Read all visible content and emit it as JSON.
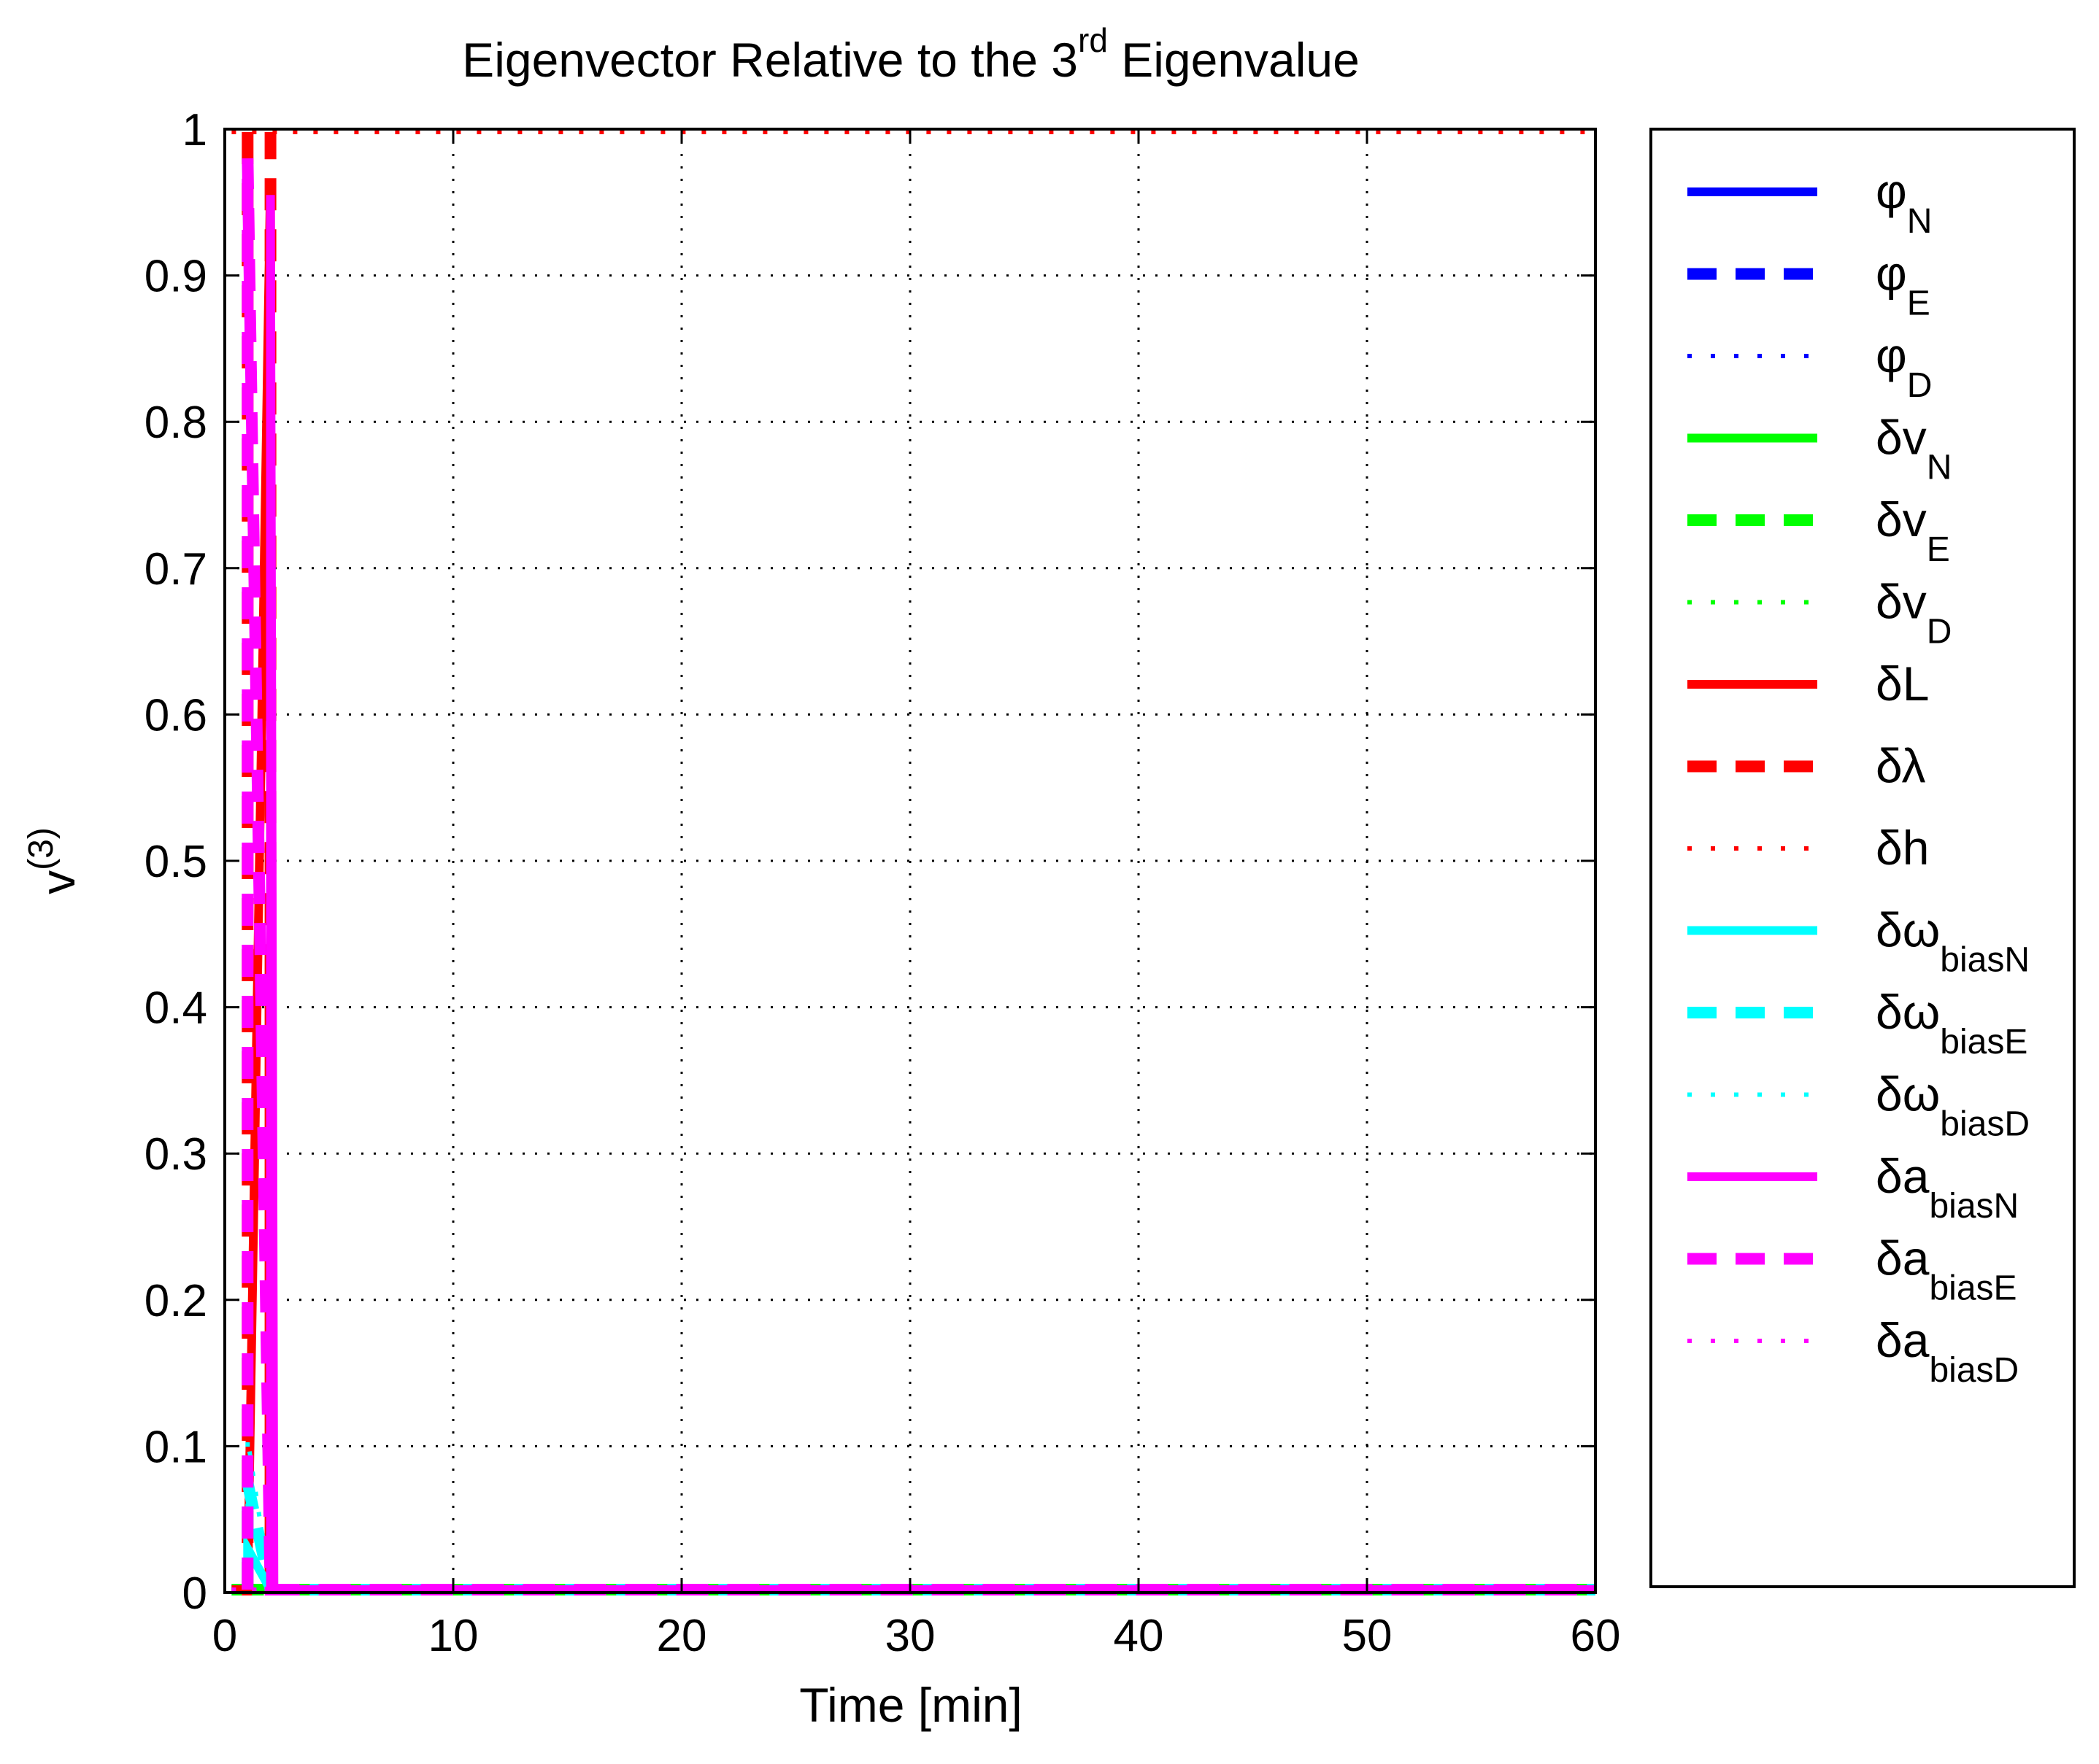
{
  "chart_data": {
    "type": "line",
    "title": {
      "main": "Eigenvector Relative to the 3",
      "superscript": "rd",
      "rest": " Eigenvalue"
    },
    "xlabel": "Time [min]",
    "ylabel": {
      "base": "v",
      "superscript": "(3)"
    },
    "xlim": [
      0,
      60
    ],
    "ylim": [
      0,
      1
    ],
    "xticks": [
      0,
      10,
      20,
      30,
      40,
      50,
      60
    ],
    "xtick_labels": [
      "0",
      "10",
      "20",
      "30",
      "40",
      "50",
      "60"
    ],
    "yticks": [
      0,
      0.1,
      0.2,
      0.3,
      0.4,
      0.5,
      0.6,
      0.7,
      0.8,
      0.9,
      1
    ],
    "ytick_labels": [
      "0",
      "0.1",
      "0.2",
      "0.3",
      "0.4",
      "0.5",
      "0.6",
      "0.7",
      "0.8",
      "0.9",
      "1"
    ],
    "grid": true,
    "legend_position": "outside-right",
    "series": [
      {
        "name": "φN",
        "label": "φ",
        "sub": "N",
        "color": "#0000ff",
        "style": "solid",
        "points": [
          [
            0.3,
            0.002
          ],
          [
            60,
            0.002
          ]
        ]
      },
      {
        "name": "φE",
        "label": "φ",
        "sub": "E",
        "color": "#0000ff",
        "style": "dashed",
        "points": [
          [
            0.3,
            0.002
          ],
          [
            60,
            0.002
          ]
        ]
      },
      {
        "name": "φD",
        "label": "φ",
        "sub": "D",
        "color": "#0000ff",
        "style": "dotted",
        "points": [
          [
            0.3,
            0.002
          ],
          [
            60,
            0.002
          ]
        ]
      },
      {
        "name": "δvN",
        "label": "δv",
        "sub": "N",
        "color": "#00ff00",
        "style": "solid",
        "points": [
          [
            0.3,
            0.002
          ],
          [
            60,
            0.002
          ]
        ]
      },
      {
        "name": "δvE",
        "label": "δv",
        "sub": "E",
        "color": "#00ff00",
        "style": "dashed",
        "points": [
          [
            0.3,
            0.002
          ],
          [
            60,
            0.002
          ]
        ]
      },
      {
        "name": "δvD",
        "label": "δv",
        "sub": "D",
        "color": "#00ff00",
        "style": "dotted",
        "points": [
          [
            0.3,
            0.002
          ],
          [
            60,
            0.002
          ]
        ]
      },
      {
        "name": "δL",
        "label": "δL",
        "sub": "",
        "color": "#ff0000",
        "style": "solid",
        "points": [
          [
            0.3,
            0.002
          ],
          [
            1.0,
            0.002
          ],
          [
            2.0,
            0.965
          ],
          [
            2.05,
            0.002
          ],
          [
            60,
            0.002
          ]
        ]
      },
      {
        "name": "δλ",
        "label": "δλ",
        "sub": "",
        "color": "#ff0000",
        "style": "dashed",
        "points": [
          [
            1.0,
            0.998
          ],
          [
            1.0,
            0.002
          ],
          [
            2.0,
            0.002
          ],
          [
            2.0,
            0.998
          ]
        ]
      },
      {
        "name": "δh",
        "label": "δh",
        "sub": "",
        "color": "#ff0000",
        "style": "dotted",
        "points": [
          [
            0.3,
            0.998
          ],
          [
            60,
            0.998
          ]
        ]
      },
      {
        "name": "δωbiasN",
        "label": "δω",
        "sub": "biasN",
        "color": "#00ffff",
        "style": "solid",
        "points": [
          [
            1.0,
            0.002
          ],
          [
            1.0,
            0.03
          ],
          [
            2.0,
            0.002
          ],
          [
            60,
            0.002
          ]
        ]
      },
      {
        "name": "δωbiasE",
        "label": "δω",
        "sub": "biasE",
        "color": "#00ffff",
        "style": "dashed",
        "points": [
          [
            1.0,
            0.002
          ],
          [
            1.0,
            0.075
          ],
          [
            2.0,
            0.002
          ],
          [
            60,
            0.002
          ]
        ]
      },
      {
        "name": "δωbiasD",
        "label": "δω",
        "sub": "biasD",
        "color": "#00ffff",
        "style": "dotted",
        "points": [
          [
            1.0,
            0.002
          ],
          [
            1.0,
            0.105
          ],
          [
            2.0,
            0.002
          ],
          [
            60,
            0.002
          ]
        ]
      },
      {
        "name": "δabiasN",
        "label": "δa",
        "sub": "biasN",
        "color": "#ff00ff",
        "style": "solid",
        "points": [
          [
            2.0,
            0.002
          ],
          [
            2.0,
            0.955
          ],
          [
            2.15,
            0.002
          ],
          [
            60,
            0.002
          ]
        ]
      },
      {
        "name": "δabiasE",
        "label": "δa",
        "sub": "biasE",
        "color": "#ff00ff",
        "style": "dashed",
        "points": [
          [
            1.0,
            0.002
          ],
          [
            1.0,
            0.98
          ],
          [
            2.0,
            0.002
          ],
          [
            60,
            0.002
          ]
        ]
      },
      {
        "name": "δabiasD",
        "label": "δa",
        "sub": "biasD",
        "color": "#ff00ff",
        "style": "dotted",
        "points": [
          [
            0.3,
            0.002
          ],
          [
            60,
            0.002
          ]
        ]
      }
    ]
  }
}
